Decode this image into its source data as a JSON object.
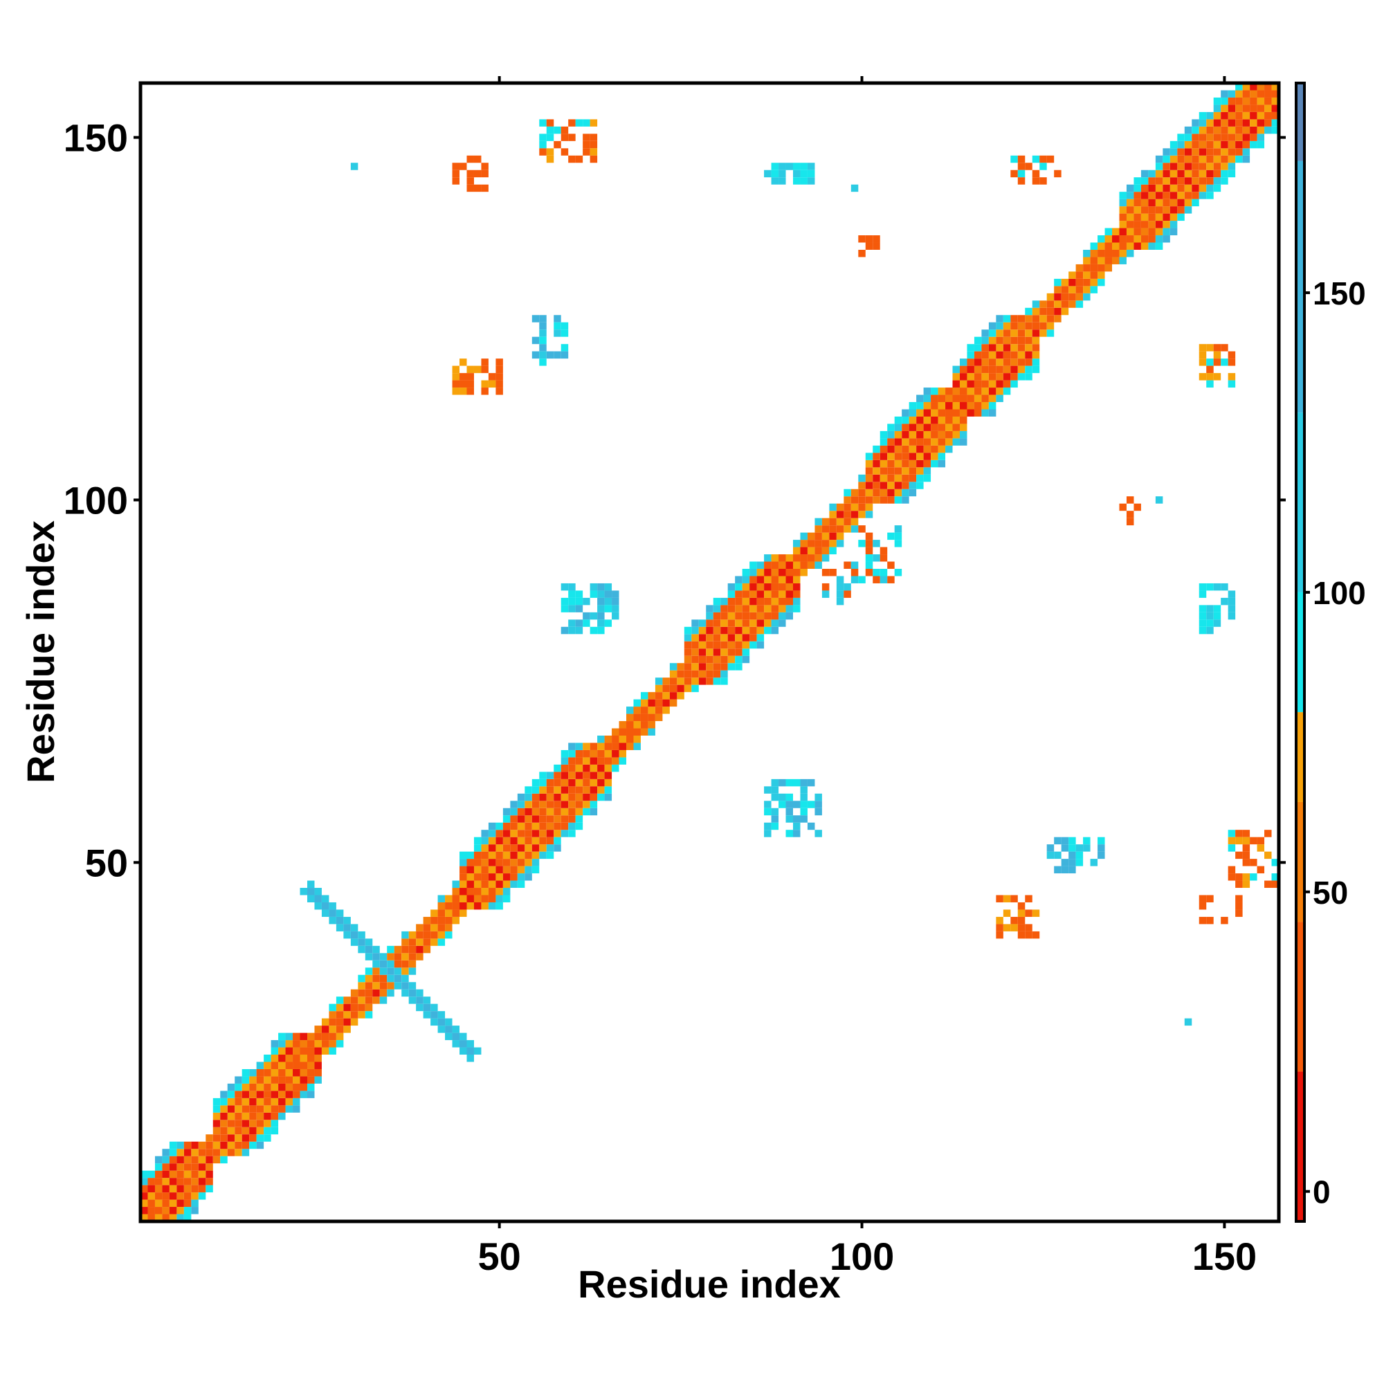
{
  "chart_data": {
    "type": "heatmap",
    "title": "",
    "xlabel": "Residue index",
    "ylabel": "Residue index",
    "xlim": [
      1,
      157
    ],
    "ylim": [
      1,
      157
    ],
    "x_ticks": [
      50,
      100,
      150
    ],
    "y_ticks": [
      50,
      100,
      150
    ],
    "grid": false,
    "legend": "colorbar-right",
    "colorbar": {
      "range": [
        -5,
        185
      ],
      "ticks": [
        0,
        50,
        100,
        150
      ],
      "segments": [
        {
          "from": -5,
          "to": 20,
          "color": "#e8150a"
        },
        {
          "from": 20,
          "to": 45,
          "color": "#f55a0a"
        },
        {
          "from": 45,
          "to": 65,
          "color": "#f57e0a"
        },
        {
          "from": 65,
          "to": 80,
          "color": "#f7a20a"
        },
        {
          "from": 80,
          "to": 100,
          "color": "#17e6ec"
        },
        {
          "from": 100,
          "to": 130,
          "color": "#2ccbe3"
        },
        {
          "from": 130,
          "to": 172,
          "color": "#3fb3dc"
        },
        {
          "from": 172,
          "to": 185,
          "color": "#5b86b8"
        }
      ]
    },
    "diagonal_band": {
      "from": 1,
      "to": 157
    },
    "helix_blocks": [
      {
        "from": 1,
        "to": 10
      },
      {
        "from": 11,
        "to": 25
      },
      {
        "from": 45,
        "to": 65
      },
      {
        "from": 76,
        "to": 91
      },
      {
        "from": 101,
        "to": 114
      },
      {
        "from": 113,
        "to": 124
      },
      {
        "from": 136,
        "to": 157
      }
    ],
    "antidiagonal_cross": {
      "center": [
        35,
        35
      ],
      "half_length": 11,
      "value": 160
    },
    "off_diagonal_clusters": [
      {
        "x": 56,
        "y": 152,
        "w": 8,
        "h": 6,
        "values": [
          40,
          70,
          95,
          20
        ]
      },
      {
        "x": 44,
        "y": 147,
        "w": 5,
        "h": 5,
        "values": [
          20,
          40
        ]
      },
      {
        "x": 30,
        "y": 146,
        "w": 1,
        "h": 1,
        "values": [
          110
        ]
      },
      {
        "x": 87,
        "y": 146,
        "w": 7,
        "h": 3,
        "values": [
          110,
          95
        ]
      },
      {
        "x": 121,
        "y": 147,
        "w": 7,
        "h": 4,
        "values": [
          40,
          95,
          20
        ]
      },
      {
        "x": 99,
        "y": 143,
        "w": 1,
        "h": 1,
        "values": [
          110
        ]
      },
      {
        "x": 99,
        "y": 136,
        "w": 4,
        "h": 3,
        "values": [
          20,
          40
        ]
      },
      {
        "x": 55,
        "y": 125,
        "w": 5,
        "h": 7,
        "values": [
          110,
          160,
          95
        ]
      },
      {
        "x": 44,
        "y": 119,
        "w": 7,
        "h": 5,
        "values": [
          20,
          40,
          70
        ]
      },
      {
        "x": 147,
        "y": 121,
        "w": 5,
        "h": 6,
        "values": [
          40,
          95,
          70
        ]
      },
      {
        "x": 136,
        "y": 100,
        "w": 3,
        "h": 4,
        "values": [
          20,
          40
        ]
      },
      {
        "x": 141,
        "y": 100,
        "w": 1,
        "h": 1,
        "values": [
          110
        ]
      },
      {
        "x": 59,
        "y": 88,
        "w": 8,
        "h": 7,
        "values": [
          110,
          160,
          95
        ]
      },
      {
        "x": 147,
        "y": 88,
        "w": 5,
        "h": 7,
        "values": [
          110,
          95
        ]
      },
      {
        "x": 87,
        "y": 61,
        "w": 8,
        "h": 8,
        "values": [
          110,
          160,
          95
        ]
      },
      {
        "x": 126,
        "y": 53,
        "w": 8,
        "h": 5,
        "values": [
          110,
          160,
          95
        ]
      },
      {
        "x": 151,
        "y": 54,
        "w": 8,
        "h": 8,
        "values": [
          40,
          70,
          95,
          20
        ]
      },
      {
        "x": 119,
        "y": 45,
        "w": 6,
        "h": 6,
        "values": [
          20,
          40,
          70
        ]
      },
      {
        "x": 147,
        "y": 45,
        "w": 6,
        "h": 4,
        "values": [
          40,
          20
        ]
      },
      {
        "x": 145,
        "y": 28,
        "w": 1,
        "h": 1,
        "values": [
          110
        ]
      },
      {
        "x": 100,
        "y": 96,
        "w": 6,
        "h": 8,
        "values": [
          110,
          40,
          95
        ]
      },
      {
        "x": 95,
        "y": 91,
        "w": 5,
        "h": 6,
        "values": [
          40,
          110
        ]
      }
    ]
  }
}
